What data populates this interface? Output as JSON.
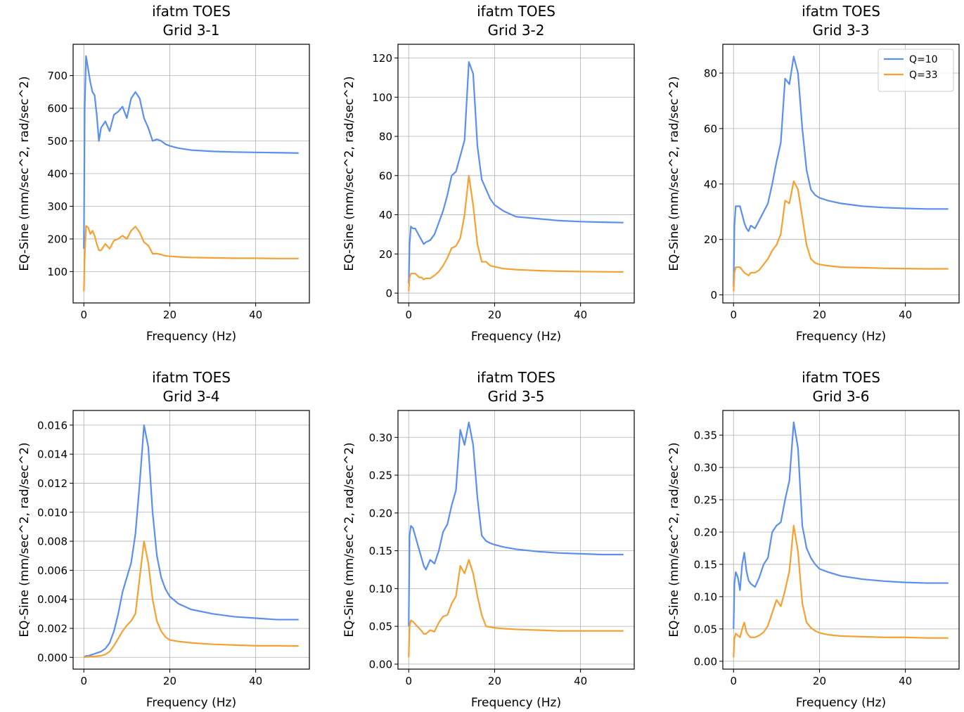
{
  "chart_data": [
    {
      "type": "line",
      "title": "ifatm TOES\nGrid 3-1",
      "xlabel": "Frequency (Hz)",
      "ylabel": "EQ-Sine (mm/sec^2, rad/sec^2)",
      "grid": true,
      "xlim": [
        -2.5,
        52.5
      ],
      "xticks": [
        0,
        20,
        40
      ],
      "ylim": [
        4,
        796
      ],
      "yticks": [
        100,
        200,
        300,
        400,
        500,
        600,
        700
      ],
      "x": [
        0,
        0.2,
        0.5,
        1,
        1.5,
        2,
        2.5,
        3,
        3.5,
        4,
        5,
        6,
        7,
        8,
        9,
        10,
        11,
        12,
        13,
        14,
        15,
        16,
        17,
        18,
        19,
        20,
        22,
        25,
        30,
        35,
        40,
        45,
        50
      ],
      "series": [
        {
          "color": "#5b8fee",
          "values": [
            170,
            600,
            760,
            720,
            680,
            650,
            640,
            580,
            500,
            540,
            560,
            530,
            580,
            590,
            605,
            570,
            630,
            650,
            630,
            570,
            540,
            500,
            505,
            500,
            490,
            485,
            478,
            472,
            468,
            466,
            465,
            464,
            463
          ]
        },
        {
          "color": "#f5a132",
          "values": [
            40,
            150,
            240,
            235,
            215,
            225,
            210,
            185,
            165,
            165,
            185,
            170,
            195,
            200,
            210,
            200,
            225,
            238,
            220,
            190,
            180,
            155,
            155,
            152,
            148,
            147,
            145,
            143,
            142,
            141,
            141,
            140,
            140
          ]
        }
      ]
    },
    {
      "type": "line",
      "title": "ifatm TOES\nGrid 3-2",
      "xlabel": "Frequency (Hz)",
      "ylabel": "EQ-Sine (mm/sec^2, rad/sec^2)",
      "grid": true,
      "xlim": [
        -2.5,
        52.5
      ],
      "xticks": [
        0,
        20,
        40
      ],
      "ylim": [
        -5,
        127
      ],
      "yticks": [
        0,
        20,
        40,
        60,
        80,
        100,
        120
      ],
      "x": [
        0,
        0.2,
        0.5,
        1,
        1.5,
        2,
        2.5,
        3,
        3.5,
        4,
        5,
        6,
        7,
        8,
        9,
        10,
        11,
        12,
        13,
        14,
        15,
        16,
        17,
        18,
        19,
        20,
        22,
        25,
        30,
        35,
        40,
        45,
        50
      ],
      "series": [
        {
          "color": "#5b8fee",
          "values": [
            5,
            25,
            34,
            33,
            33,
            31,
            29,
            27,
            25,
            26,
            27,
            30,
            36,
            42,
            50,
            60,
            62,
            70,
            78,
            118,
            112,
            75,
            58,
            53,
            48,
            45,
            42,
            39,
            38,
            37,
            36.5,
            36.2,
            36
          ]
        },
        {
          "color": "#f5a132",
          "values": [
            1,
            8,
            10,
            10,
            10,
            9,
            8,
            8,
            7,
            7.5,
            7.5,
            9,
            11,
            14,
            18,
            23,
            24,
            28,
            40,
            60,
            45,
            25,
            16,
            16,
            14,
            13.5,
            12.5,
            12,
            11.5,
            11.2,
            11,
            10.9,
            10.8
          ]
        }
      ]
    },
    {
      "type": "line",
      "title": "ifatm TOES\nGrid 3-3",
      "xlabel": "Frequency (Hz)",
      "ylabel": "EQ-Sine (mm/sec^2, rad/sec^2)",
      "grid": true,
      "legend": "upper right",
      "xlim": [
        -2.5,
        52.5
      ],
      "xticks": [
        0,
        20,
        40
      ],
      "ylim": [
        -2.9,
        90.4
      ],
      "yticks": [
        0,
        20,
        40,
        60,
        80
      ],
      "x": [
        0,
        0.2,
        0.5,
        1,
        1.5,
        2,
        2.5,
        3,
        3.5,
        4,
        5,
        6,
        7,
        8,
        9,
        10,
        11,
        12,
        13,
        14,
        15,
        16,
        17,
        18,
        19,
        20,
        22,
        25,
        30,
        35,
        40,
        45,
        50
      ],
      "series": [
        {
          "name": "Q=10",
          "color": "#5b8fee",
          "values": [
            3,
            25,
            32,
            32,
            32,
            29,
            26,
            24,
            23,
            25,
            24,
            27,
            30,
            33,
            40,
            48,
            55,
            78,
            76,
            86,
            80,
            60,
            45,
            38,
            36,
            35,
            34,
            33,
            32,
            31.5,
            31.2,
            31,
            31
          ]
        },
        {
          "name": "Q=33",
          "color": "#f5a132",
          "values": [
            1.3,
            8,
            10,
            10,
            10,
            9,
            8,
            7.5,
            7,
            8,
            8,
            9,
            11,
            13,
            16,
            18,
            22,
            34,
            33,
            41,
            38,
            28,
            18,
            13,
            11.5,
            11,
            10.5,
            10,
            9.8,
            9.6,
            9.5,
            9.4,
            9.4
          ]
        }
      ]
    },
    {
      "type": "line",
      "title": "ifatm TOES\nGrid 3-4",
      "xlabel": "Frequency (Hz)",
      "ylabel": "EQ-Sine (mm/sec^2, rad/sec^2)",
      "grid": true,
      "xlim": [
        -2.5,
        52.5
      ],
      "xticks": [
        0,
        20,
        40
      ],
      "ylim": [
        -0.00081,
        0.01701
      ],
      "yticks": [
        {
          "value": 0,
          "label": "0.000"
        },
        0.002,
        0.004,
        0.006,
        0.008,
        {
          "value": 0.01,
          "label": "0.010"
        },
        0.012,
        0.014,
        0.016
      ],
      "x": [
        0,
        0.2,
        0.5,
        1,
        1.5,
        2,
        2.5,
        3,
        3.5,
        4,
        5,
        6,
        7,
        8,
        9,
        10,
        11,
        12,
        13,
        14,
        15,
        16,
        17,
        18,
        19,
        20,
        22,
        25,
        30,
        35,
        40,
        45,
        50
      ],
      "series": [
        {
          "color": "#5b8fee",
          "values": [
            0,
            5e-05,
            0.0001,
            0.0001,
            0.00015,
            0.0002,
            0.00025,
            0.0003,
            0.00035,
            0.0004,
            0.0006,
            0.001,
            0.0018,
            0.003,
            0.0045,
            0.0055,
            0.0065,
            0.0085,
            0.012,
            0.016,
            0.0145,
            0.01,
            0.007,
            0.0055,
            0.0047,
            0.0042,
            0.0037,
            0.0033,
            0.003,
            0.0028,
            0.0027,
            0.0026,
            0.0026
          ]
        },
        {
          "color": "#f5a132",
          "values": [
            0,
            2e-05,
            3e-05,
            4e-05,
            5e-05,
            6e-05,
            7e-05,
            8e-05,
            0.0001,
            0.00012,
            0.0002,
            0.0004,
            0.0008,
            0.0013,
            0.0018,
            0.0022,
            0.0025,
            0.003,
            0.0055,
            0.008,
            0.0065,
            0.004,
            0.0025,
            0.0018,
            0.0014,
            0.0012,
            0.0011,
            0.001,
            0.0009,
            0.00085,
            0.0008,
            0.0008,
            0.00078
          ]
        }
      ]
    },
    {
      "type": "line",
      "title": "ifatm TOES\nGrid 3-5",
      "xlabel": "Frequency (Hz)",
      "ylabel": "EQ-Sine (mm/sec^2, rad/sec^2)",
      "grid": true,
      "xlim": [
        -2.5,
        52.5
      ],
      "xticks": [
        0,
        20,
        40
      ],
      "ylim": [
        -0.0066,
        0.3356
      ],
      "yticks": [
        {
          "value": 0,
          "label": "0.00"
        },
        0.05,
        {
          "value": 0.1,
          "label": "0.10"
        },
        0.15,
        {
          "value": 0.2,
          "label": "0.20"
        },
        0.25,
        {
          "value": 0.3,
          "label": "0.30"
        }
      ],
      "x": [
        0,
        0.2,
        0.5,
        1,
        1.5,
        2,
        2.5,
        3,
        3.5,
        4,
        5,
        6,
        7,
        8,
        9,
        10,
        11,
        12,
        13,
        14,
        15,
        16,
        17,
        18,
        19,
        20,
        22,
        25,
        30,
        35,
        40,
        45,
        50
      ],
      "series": [
        {
          "color": "#5b8fee",
          "values": [
            0.05,
            0.17,
            0.183,
            0.18,
            0.17,
            0.16,
            0.15,
            0.14,
            0.13,
            0.125,
            0.138,
            0.133,
            0.15,
            0.175,
            0.185,
            0.21,
            0.23,
            0.31,
            0.29,
            0.32,
            0.29,
            0.22,
            0.17,
            0.163,
            0.16,
            0.158,
            0.155,
            0.152,
            0.149,
            0.147,
            0.146,
            0.145,
            0.145
          ]
        },
        {
          "color": "#f5a132",
          "values": [
            0.009,
            0.05,
            0.058,
            0.056,
            0.053,
            0.05,
            0.047,
            0.044,
            0.04,
            0.04,
            0.045,
            0.043,
            0.055,
            0.063,
            0.065,
            0.08,
            0.09,
            0.13,
            0.12,
            0.138,
            0.12,
            0.09,
            0.065,
            0.05,
            0.049,
            0.048,
            0.047,
            0.046,
            0.045,
            0.044,
            0.044,
            0.044,
            0.044
          ]
        }
      ]
    },
    {
      "type": "line",
      "title": "ifatm TOES\nGrid 3-6",
      "xlabel": "Frequency (Hz)",
      "ylabel": "EQ-Sine (mm/sec^2, rad/sec^2)",
      "grid": true,
      "xlim": [
        -2.5,
        52.5
      ],
      "xticks": [
        0,
        20,
        40
      ],
      "ylim": [
        -0.0122,
        0.3882
      ],
      "yticks": [
        {
          "value": 0,
          "label": "0.00"
        },
        0.05,
        {
          "value": 0.1,
          "label": "0.10"
        },
        0.15,
        {
          "value": 0.2,
          "label": "0.20"
        },
        0.25,
        {
          "value": 0.3,
          "label": "0.30"
        },
        0.35
      ],
      "x": [
        0,
        0.2,
        0.5,
        1,
        1.5,
        2,
        2.5,
        3,
        3.5,
        4,
        5,
        6,
        7,
        8,
        9,
        10,
        11,
        12,
        13,
        14,
        15,
        16,
        17,
        18,
        19,
        20,
        22,
        25,
        30,
        35,
        40,
        45,
        50
      ],
      "series": [
        {
          "color": "#5b8fee",
          "values": [
            0.05,
            0.12,
            0.138,
            0.13,
            0.11,
            0.15,
            0.168,
            0.14,
            0.125,
            0.12,
            0.115,
            0.13,
            0.15,
            0.16,
            0.2,
            0.21,
            0.215,
            0.25,
            0.28,
            0.37,
            0.33,
            0.21,
            0.175,
            0.16,
            0.15,
            0.143,
            0.138,
            0.132,
            0.127,
            0.124,
            0.122,
            0.121,
            0.121
          ]
        },
        {
          "color": "#f5a132",
          "values": [
            0.006,
            0.035,
            0.043,
            0.04,
            0.037,
            0.05,
            0.06,
            0.045,
            0.04,
            0.037,
            0.037,
            0.04,
            0.045,
            0.055,
            0.075,
            0.095,
            0.085,
            0.11,
            0.14,
            0.21,
            0.17,
            0.09,
            0.06,
            0.052,
            0.047,
            0.044,
            0.041,
            0.039,
            0.038,
            0.037,
            0.037,
            0.036,
            0.036
          ]
        }
      ]
    }
  ]
}
